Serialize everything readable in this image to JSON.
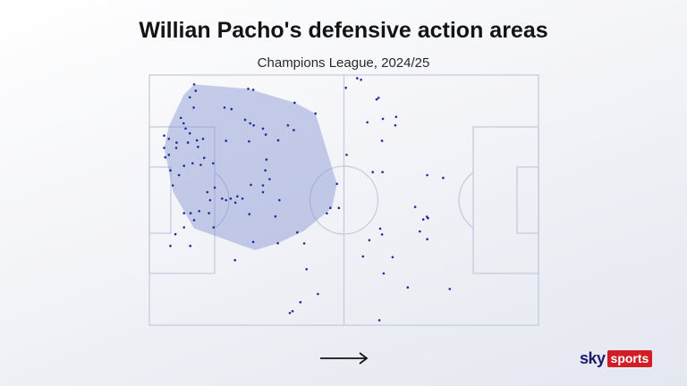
{
  "header": {
    "title": "Willian Pacho's defensive action areas",
    "subtitle": "Champions League, 2024/25"
  },
  "logo": {
    "sky": "sky",
    "sports": "sports"
  },
  "colors": {
    "pitch_lines": "#c4c9dc",
    "dots": "#1f2a9c",
    "area_fill": "#7c8dd0",
    "logo_red": "#d11d25",
    "logo_navy": "#1b1b6e"
  },
  "chart_data": {
    "type": "scatter",
    "title": "Willian Pacho's defensive action areas",
    "subtitle": "Champions League, 2024/25",
    "coordinate_system": "pitch length 0-100 (own goal to opponent goal), width 0-100 (top touchline to bottom touchline)",
    "attack_direction": "left-to-right",
    "convex_hull": [
      [
        3.8,
        29.1
      ],
      [
        5.0,
        20.5
      ],
      [
        8.8,
        8.0
      ],
      [
        11.5,
        3.7
      ],
      [
        25.4,
        5.5
      ],
      [
        37.5,
        11.1
      ],
      [
        42.7,
        15.4
      ],
      [
        48.2,
        43.5
      ],
      [
        46.9,
        53.1
      ],
      [
        39.8,
        62.2
      ],
      [
        33.0,
        67.2
      ],
      [
        27.2,
        70.0
      ],
      [
        11.5,
        61.3
      ],
      [
        6.1,
        46.8
      ]
    ],
    "points": [
      [
        11.5,
        3.7
      ],
      [
        11.9,
        6.3
      ],
      [
        10.4,
        8.9
      ],
      [
        25.4,
        5.5
      ],
      [
        26.7,
        5.9
      ],
      [
        8.1,
        17.1
      ],
      [
        11.4,
        13.0
      ],
      [
        19.3,
        13.0
      ],
      [
        21.1,
        13.6
      ],
      [
        37.3,
        11.1
      ],
      [
        8.8,
        19.3
      ],
      [
        24.6,
        17.9
      ],
      [
        25.9,
        19.3
      ],
      [
        26.8,
        20.1
      ],
      [
        29.2,
        21.4
      ],
      [
        35.6,
        20.1
      ],
      [
        37.1,
        22.0
      ],
      [
        9.3,
        21.4
      ],
      [
        10.4,
        23.3
      ],
      [
        29.9,
        23.8
      ],
      [
        3.8,
        24.2
      ],
      [
        5.0,
        25.5
      ],
      [
        13.8,
        25.5
      ],
      [
        7.0,
        27.0
      ],
      [
        9.9,
        27.0
      ],
      [
        12.2,
        26.1
      ],
      [
        19.7,
        26.3
      ],
      [
        25.6,
        26.5
      ],
      [
        33.1,
        26.1
      ],
      [
        3.8,
        29.1
      ],
      [
        6.9,
        29.1
      ],
      [
        12.5,
        28.7
      ],
      [
        4.1,
        32.9
      ],
      [
        5.0,
        31.9
      ],
      [
        14.1,
        33.1
      ],
      [
        30.1,
        33.8
      ],
      [
        8.9,
        36.3
      ],
      [
        11.1,
        35.3
      ],
      [
        13.2,
        35.9
      ],
      [
        16.4,
        35.3
      ],
      [
        5.4,
        38.1
      ],
      [
        29.8,
        38.1
      ],
      [
        6.0,
        44.1
      ],
      [
        7.6,
        40.0
      ],
      [
        16.8,
        45.0
      ],
      [
        14.9,
        46.8
      ],
      [
        26.1,
        43.9
      ],
      [
        29.2,
        44.1
      ],
      [
        30.9,
        41.6
      ],
      [
        29.2,
        46.8
      ],
      [
        20.9,
        49.4
      ],
      [
        23.9,
        49.4
      ],
      [
        15.6,
        50.0
      ],
      [
        18.7,
        49.4
      ],
      [
        19.7,
        50.0
      ],
      [
        22.1,
        51.0
      ],
      [
        22.6,
        48.5
      ],
      [
        33.4,
        50.0
      ],
      [
        46.5,
        53.1
      ],
      [
        8.9,
        55.2
      ],
      [
        10.6,
        55.2
      ],
      [
        12.8,
        54.4
      ],
      [
        11.5,
        58.0
      ],
      [
        15.3,
        55.2
      ],
      [
        25.7,
        55.6
      ],
      [
        32.4,
        56.5
      ],
      [
        45.6,
        55.3
      ],
      [
        8.9,
        60.9
      ],
      [
        6.7,
        63.6
      ],
      [
        16.5,
        60.9
      ],
      [
        38.0,
        62.9
      ],
      [
        5.4,
        68.3
      ],
      [
        10.5,
        68.3
      ],
      [
        26.7,
        66.7
      ],
      [
        33.0,
        67.2
      ],
      [
        39.8,
        67.3
      ],
      [
        22.0,
        74.0
      ],
      [
        40.4,
        77.6
      ],
      [
        48.2,
        43.5
      ],
      [
        42.7,
        15.4
      ],
      [
        48.7,
        53.1
      ]
    ],
    "points_second_half": [
      [
        53.4,
        1.3
      ],
      [
        54.4,
        1.9
      ],
      [
        50.5,
        5.1
      ],
      [
        58.4,
        9.7
      ],
      [
        58.9,
        9.1
      ],
      [
        63.4,
        16.7
      ],
      [
        60.0,
        17.5
      ],
      [
        56.0,
        18.9
      ],
      [
        63.2,
        20.1
      ],
      [
        59.8,
        26.3
      ],
      [
        50.7,
        31.9
      ],
      [
        57.4,
        38.8
      ],
      [
        59.9,
        38.8
      ],
      [
        71.4,
        40.0
      ],
      [
        75.5,
        41.1
      ],
      [
        68.3,
        52.7
      ],
      [
        70.4,
        57.7
      ],
      [
        71.3,
        56.6
      ],
      [
        69.5,
        62.5
      ],
      [
        56.5,
        66.0
      ],
      [
        59.3,
        61.4
      ],
      [
        71.4,
        65.6
      ],
      [
        71.6,
        57.2
      ],
      [
        59.8,
        63.7
      ],
      [
        54.9,
        72.5
      ],
      [
        62.5,
        72.8
      ],
      [
        60.2,
        79.3
      ],
      [
        66.4,
        84.9
      ],
      [
        77.2,
        85.5
      ],
      [
        43.3,
        87.5
      ],
      [
        38.8,
        90.8
      ],
      [
        36.1,
        95.1
      ],
      [
        59.1,
        98.0
      ],
      [
        36.8,
        94.4
      ]
    ]
  }
}
